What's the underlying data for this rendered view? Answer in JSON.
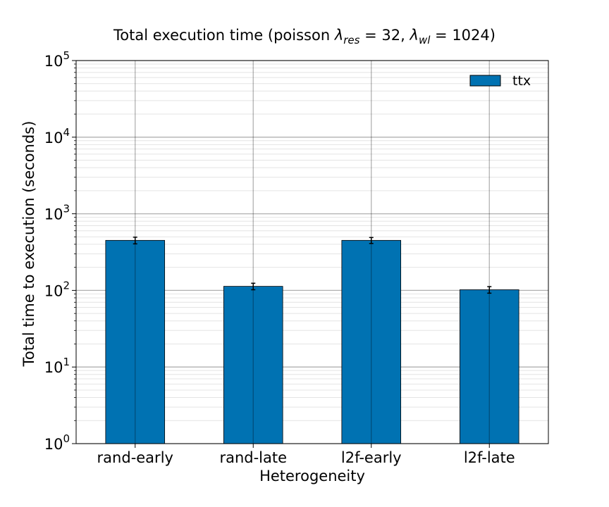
{
  "chart_data": {
    "type": "bar",
    "title": {
      "prefix": "Total execution time (poisson ",
      "lambda1_symbol": "λ",
      "lambda1_sub": "res",
      "lambda1_value": " = 32, ",
      "lambda2_symbol": "λ",
      "lambda2_sub": "wl",
      "lambda2_value": " = 1024)"
    },
    "xlabel": "Heterogeneity",
    "ylabel": "Total time to execution (seconds)",
    "yscale": "log",
    "ylim": [
      1,
      100000
    ],
    "y_ticks": [
      {
        "base": "10",
        "exp": "0"
      },
      {
        "base": "10",
        "exp": "1"
      },
      {
        "base": "10",
        "exp": "2"
      },
      {
        "base": "10",
        "exp": "3"
      },
      {
        "base": "10",
        "exp": "4"
      },
      {
        "base": "10",
        "exp": "5"
      }
    ],
    "categories": [
      "rand-early",
      "rand-late",
      "l2f-early",
      "l2f-late"
    ],
    "series": [
      {
        "name": "ttx",
        "color": "#0072b2",
        "values": [
          450,
          113,
          450,
          102
        ],
        "errors": [
          45,
          11,
          40,
          10
        ]
      }
    ],
    "grid": true,
    "legend": "top-right"
  }
}
